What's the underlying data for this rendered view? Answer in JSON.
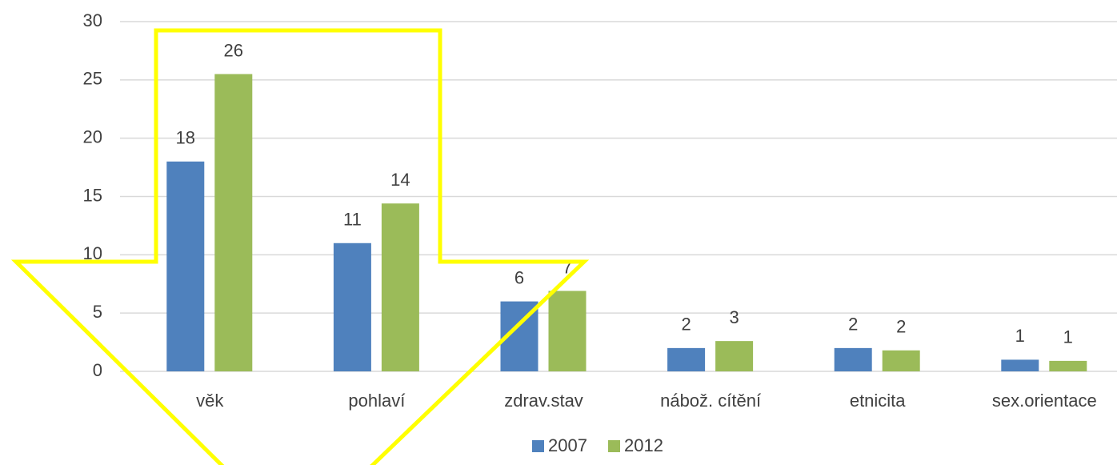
{
  "chart_data": {
    "type": "bar",
    "categories": [
      "věk",
      "pohlaví",
      "zdrav.stav",
      "nábož. cítění",
      "etnicita",
      "sex.orientace"
    ],
    "series": [
      {
        "name": "2007",
        "color": "#4f81bd",
        "values": [
          18,
          11,
          6,
          2,
          2,
          1
        ],
        "value_labels": [
          "18",
          "11",
          "6",
          "2",
          "2",
          "1"
        ]
      },
      {
        "name": "2012",
        "color": "#9bbb59",
        "values": [
          25.5,
          14.4,
          6.9,
          2.6,
          1.8,
          0.9
        ],
        "value_labels": [
          "26",
          "14",
          "7",
          "3",
          "2",
          "1"
        ]
      }
    ],
    "ylim": [
      0,
      30
    ],
    "yticks": [
      0,
      5,
      10,
      15,
      20,
      25,
      30
    ],
    "grid": true,
    "legend": "bottom"
  }
}
